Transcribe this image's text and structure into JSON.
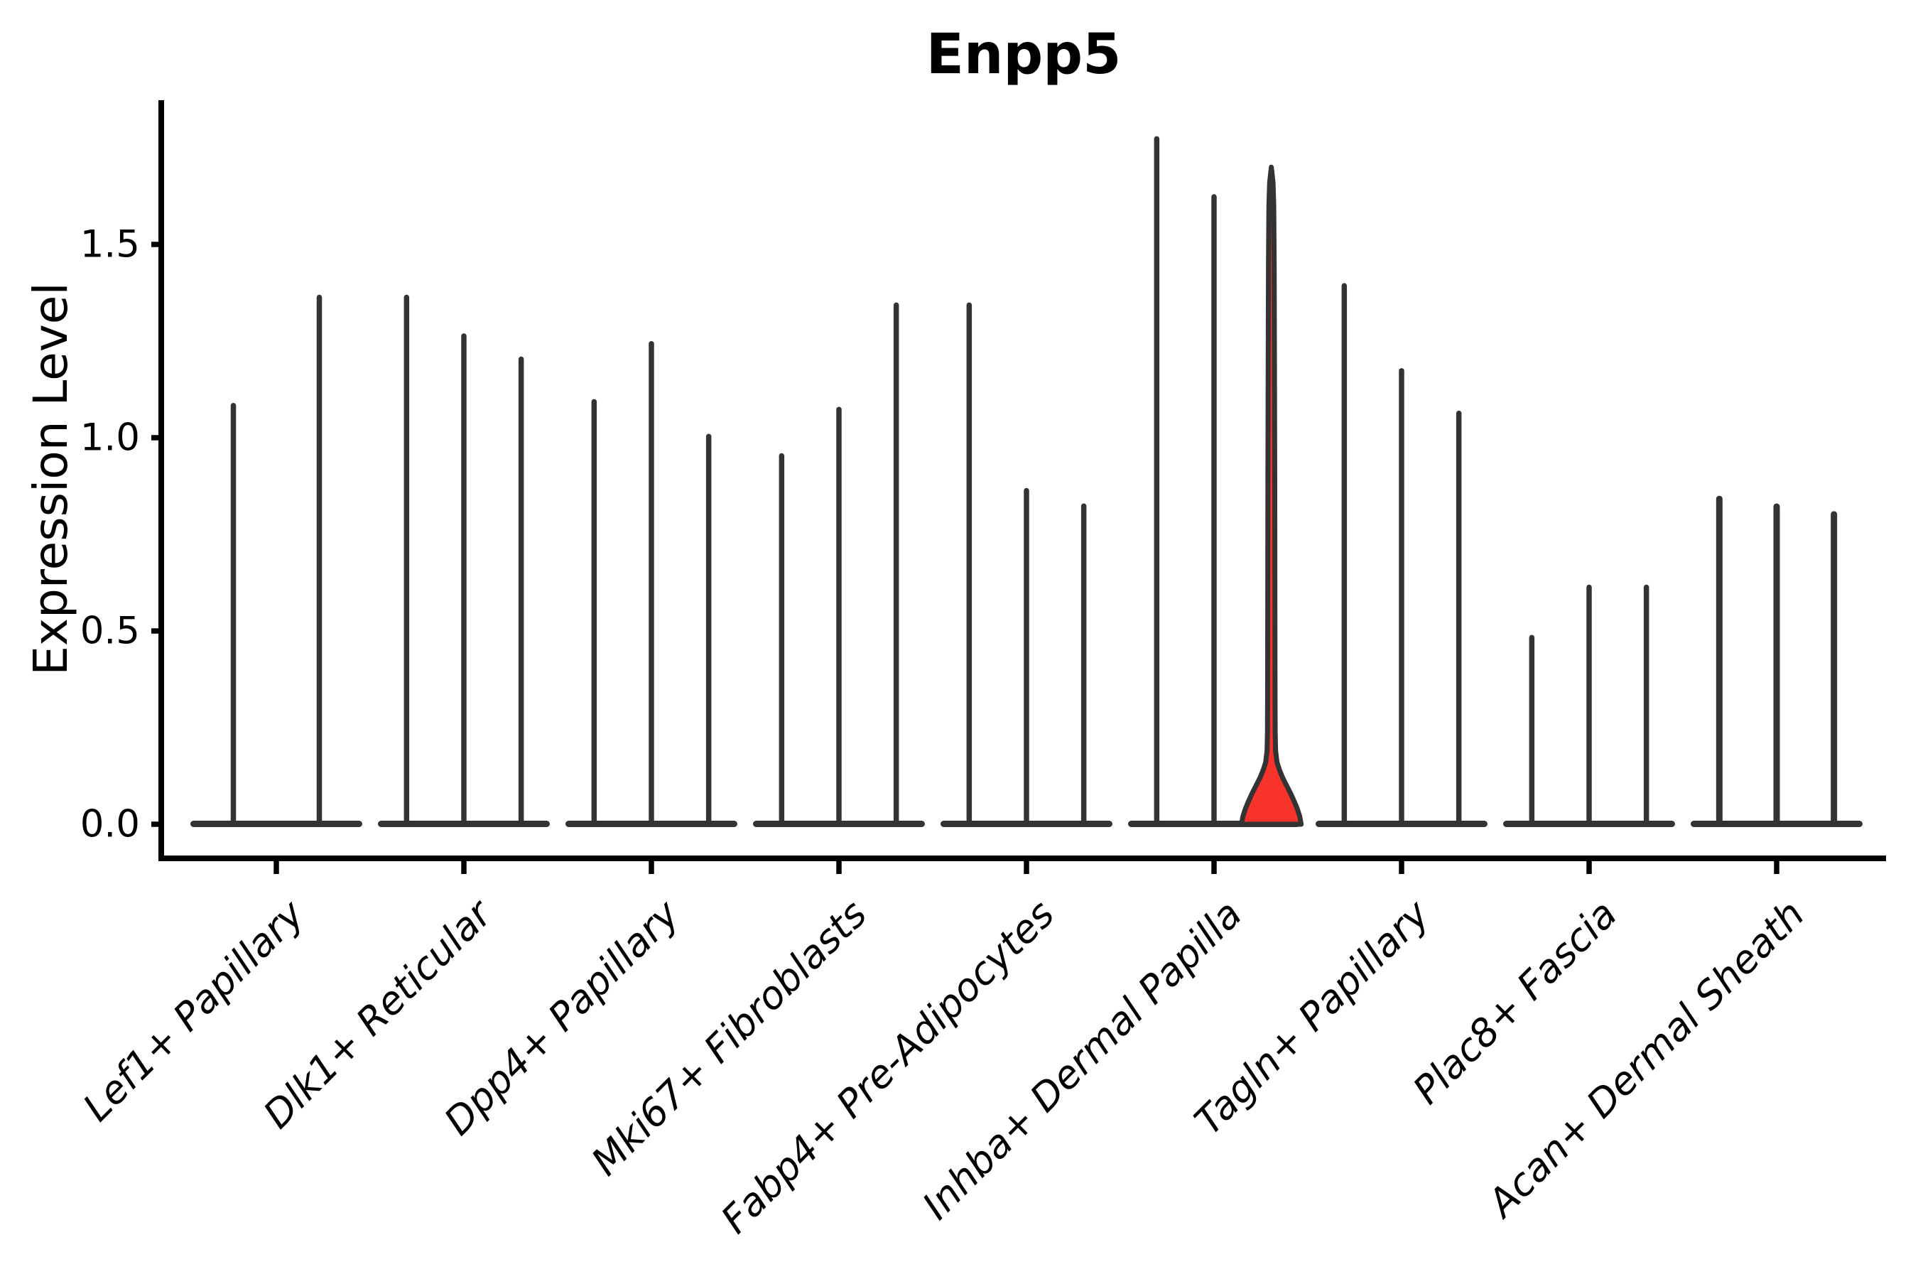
{
  "chart_data": {
    "type": "violin",
    "title": "Enpp5",
    "ylabel": "Expression Level",
    "xlabel": "",
    "ytick_labels": [
      "0.0",
      "0.5",
      "1.0",
      "1.5"
    ],
    "ytick_values": [
      0.0,
      0.5,
      1.0,
      1.5
    ],
    "ylim": [
      -0.09,
      1.87
    ],
    "grid": false,
    "legend": false,
    "categories": [
      "Lef1+ Papillary",
      "Dlk1+ Reticular",
      "Dpp4+ Papillary",
      "Mki67+ Fibroblasts",
      "Fabp4+ Pre-Adipocytes",
      "Inhba+ Dermal Papilla",
      "Tagln+ Papillary",
      "Plac8+ Fascia",
      "Acan+ Dermal Sheath"
    ],
    "groups": [
      {
        "label": "Lef1+ Papillary",
        "violin_maxima": [
          1.09,
          1.37
        ],
        "highlight_index": -1
      },
      {
        "label": "Dlk1+ Reticular",
        "violin_maxima": [
          1.37,
          1.27,
          1.21
        ],
        "highlight_index": -1
      },
      {
        "label": "Dpp4+ Papillary",
        "violin_maxima": [
          1.1,
          1.25,
          1.01
        ],
        "highlight_index": -1
      },
      {
        "label": "Mki67+ Fibroblasts",
        "violin_maxima": [
          0.96,
          1.08,
          1.35
        ],
        "highlight_index": -1
      },
      {
        "label": "Fabp4+ Pre-Adipocytes",
        "violin_maxima": [
          1.35,
          0.87,
          0.83
        ],
        "highlight_index": -1
      },
      {
        "label": "Inhba+ Dermal Papilla",
        "violin_maxima": [
          1.78,
          1.63,
          1.7
        ],
        "highlight_index": 2
      },
      {
        "label": "Tagln+ Papillary",
        "violin_maxima": [
          1.4,
          1.18,
          1.07
        ],
        "highlight_index": -1
      },
      {
        "label": "Plac8+ Fascia",
        "violin_maxima": [
          0.49,
          0.62,
          0.62
        ],
        "highlight_index": -1
      },
      {
        "label": "Acan+ Dermal Sheath",
        "violin_maxima": [
          0.85,
          0.83,
          0.81
        ],
        "highlight_index": -1
      }
    ],
    "highlight": {
      "group": "Inhba+ Dermal Papilla",
      "violin_position": 3,
      "max": 1.7,
      "fill": "#f8332c"
    },
    "colors": {
      "violin_stroke": "#333333",
      "highlight_fill": "#f8332c",
      "axis": "#000000",
      "text": "#000000",
      "background": "#ffffff"
    }
  }
}
